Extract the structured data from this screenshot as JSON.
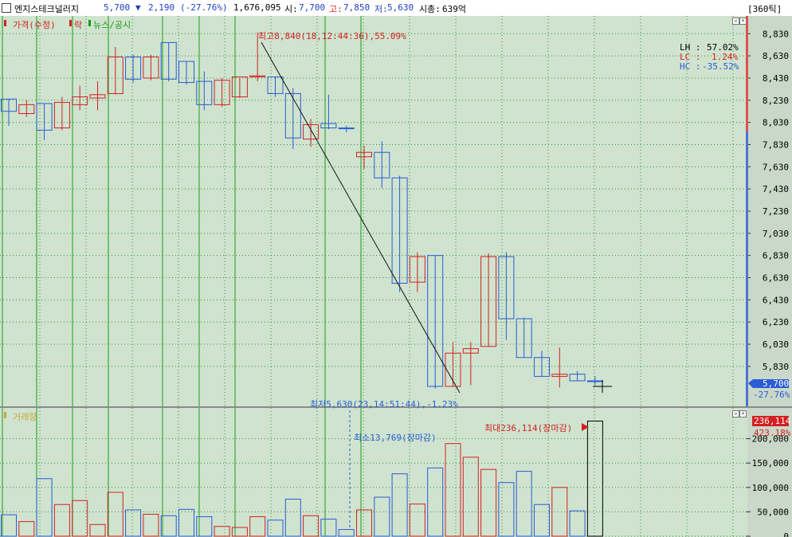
{
  "header": {
    "stock_name": "엔지스테크널러지",
    "price": "5,700",
    "change_arrow": "▼",
    "change": "2,190",
    "change_pct": "(-27.76%)",
    "volume": "1,676,095",
    "open_label": "시:",
    "open": "7,700",
    "high_label": "고:",
    "high": "7,850",
    "low_label": "저:",
    "low": "5,630",
    "mcap_label": "시총:",
    "mcap": "639억",
    "tick_button": "[360틱]"
  },
  "price_panel": {
    "legend_price": "가격(수정)",
    "legend_rak": "락",
    "legend_news": "뉴스/공시",
    "max_annotation": "최고8,840(18,12:44:36),55.09%",
    "min_annotation": "최저5,630(23,14:51:44),-1.23%",
    "lh_label": "LH :",
    "lh_value": "57.02%",
    "lc_label": "LC :",
    "lc_value": "1.24%",
    "hc_label": "HC :",
    "hc_value": "-35.52%",
    "current_price_tag": "5,700",
    "current_pct_tag": "-27.76%"
  },
  "volume_panel": {
    "legend": "거래량",
    "max_annotation": "최대236,114(장마감)",
    "min_annotation": "최소13,769(장마감)",
    "current_volume_tag": "236,114",
    "current_pct_tag": "423.18%"
  },
  "colors": {
    "background": "#cfe3cf",
    "up": "#d42020",
    "down": "#2a5cd6",
    "vline": "#1a9c1a",
    "grid": "#3c8c3c",
    "axis_bg": "#c9d8c9"
  },
  "chart_data": [
    {
      "type": "candlestick",
      "yticks": [
        5830,
        6030,
        6230,
        6430,
        6630,
        6830,
        7030,
        7230,
        7430,
        7630,
        7830,
        8030,
        8230,
        8430,
        8630,
        8830
      ],
      "ytick_labels": [
        "5,830",
        "6,030",
        "6,230",
        "6,430",
        "6,630",
        "6,830",
        "7,030",
        "7,230",
        "7,430",
        "7,630",
        "7,830",
        "8,030",
        "8,230",
        "8,430",
        "8,630",
        "8,830"
      ],
      "ylim": [
        5470,
        8990
      ],
      "candles": [
        {
          "o": 8240,
          "h": 8240,
          "l": 8000,
          "c": 8130,
          "d": "down"
        },
        {
          "o": 8110,
          "h": 8230,
          "l": 8080,
          "c": 8190,
          "d": "up"
        },
        {
          "o": 8200,
          "h": 8200,
          "l": 7870,
          "c": 7960,
          "d": "down"
        },
        {
          "o": 7980,
          "h": 8260,
          "l": 7960,
          "c": 8210,
          "d": "up"
        },
        {
          "o": 8190,
          "h": 8360,
          "l": 8140,
          "c": 8260,
          "d": "up"
        },
        {
          "o": 8250,
          "h": 8400,
          "l": 8140,
          "c": 8280,
          "d": "up"
        },
        {
          "o": 8290,
          "h": 8710,
          "l": 8280,
          "c": 8620,
          "d": "up"
        },
        {
          "o": 8620,
          "h": 8640,
          "l": 8390,
          "c": 8420,
          "d": "down"
        },
        {
          "o": 8430,
          "h": 8640,
          "l": 8410,
          "c": 8620,
          "d": "up"
        },
        {
          "o": 8750,
          "h": 8750,
          "l": 8400,
          "c": 8420,
          "d": "down"
        },
        {
          "o": 8580,
          "h": 8580,
          "l": 8370,
          "c": 8390,
          "d": "down"
        },
        {
          "o": 8400,
          "h": 8490,
          "l": 8140,
          "c": 8190,
          "d": "down"
        },
        {
          "o": 8190,
          "h": 8430,
          "l": 8170,
          "c": 8410,
          "d": "up"
        },
        {
          "o": 8260,
          "h": 8430,
          "l": 8250,
          "c": 8440,
          "d": "up"
        },
        {
          "o": 8440,
          "h": 8840,
          "l": 8400,
          "c": 8450,
          "d": "up"
        },
        {
          "o": 8440,
          "h": 8440,
          "l": 8260,
          "c": 8290,
          "d": "down"
        },
        {
          "o": 8290,
          "h": 8340,
          "l": 7790,
          "c": 7890,
          "d": "down"
        },
        {
          "o": 7880,
          "h": 8060,
          "l": 7810,
          "c": 8010,
          "d": "up"
        },
        {
          "o": 8020,
          "h": 8280,
          "l": 7970,
          "c": 7980,
          "d": "down"
        },
        {
          "o": 7980,
          "h": 8000,
          "l": 7940,
          "c": 7980,
          "d": "down"
        },
        {
          "o": 7720,
          "h": 7820,
          "l": 7610,
          "c": 7760,
          "d": "up"
        },
        {
          "o": 7760,
          "h": 7860,
          "l": 7440,
          "c": 7530,
          "d": "down"
        },
        {
          "o": 7530,
          "h": 7550,
          "l": 6500,
          "c": 6580,
          "d": "down"
        },
        {
          "o": 6590,
          "h": 6860,
          "l": 6500,
          "c": 6820,
          "d": "up"
        },
        {
          "o": 6830,
          "h": 6830,
          "l": 5630,
          "c": 5650,
          "d": "down"
        },
        {
          "o": 5650,
          "h": 6050,
          "l": 5650,
          "c": 5950,
          "d": "up"
        },
        {
          "o": 5950,
          "h": 6050,
          "l": 5660,
          "c": 5990,
          "d": "up"
        },
        {
          "o": 6010,
          "h": 6850,
          "l": 6010,
          "c": 6820,
          "d": "up"
        },
        {
          "o": 6820,
          "h": 6860,
          "l": 6070,
          "c": 6260,
          "d": "down"
        },
        {
          "o": 6260,
          "h": 6270,
          "l": 5910,
          "c": 5910,
          "d": "down"
        },
        {
          "o": 5910,
          "h": 5970,
          "l": 5740,
          "c": 5740,
          "d": "down"
        },
        {
          "o": 5740,
          "h": 6000,
          "l": 5640,
          "c": 5760,
          "d": "up"
        },
        {
          "o": 5760,
          "h": 5790,
          "l": 5700,
          "c": 5700,
          "d": "down"
        },
        {
          "o": 5700,
          "h": 5740,
          "l": 5660,
          "c": 5700,
          "d": "down"
        }
      ]
    },
    {
      "type": "bar",
      "yticks": [
        0,
        50000,
        100000,
        150000,
        200000
      ],
      "ytick_labels": [
        "0",
        "50,000",
        "100,000",
        "150,000",
        "200,000"
      ],
      "ylim": [
        0,
        250000
      ],
      "values": [
        44000,
        30000,
        118000,
        65000,
        73000,
        24000,
        90000,
        54000,
        45000,
        42000,
        55000,
        40000,
        20000,
        18000,
        40000,
        33000,
        76000,
        42000,
        35000,
        13769,
        54000,
        80000,
        128000,
        66000,
        140000,
        190000,
        162000,
        137000,
        110000,
        133000,
        65000,
        100000,
        52000,
        236114
      ],
      "dirs": [
        "down",
        "up",
        "down",
        "up",
        "up",
        "up",
        "up",
        "down",
        "up",
        "down",
        "down",
        "down",
        "up",
        "up",
        "up",
        "down",
        "down",
        "up",
        "down",
        "down",
        "up",
        "down",
        "down",
        "up",
        "down",
        "up",
        "up",
        "up",
        "down",
        "down",
        "down",
        "up",
        "down",
        "neutral"
      ]
    }
  ]
}
